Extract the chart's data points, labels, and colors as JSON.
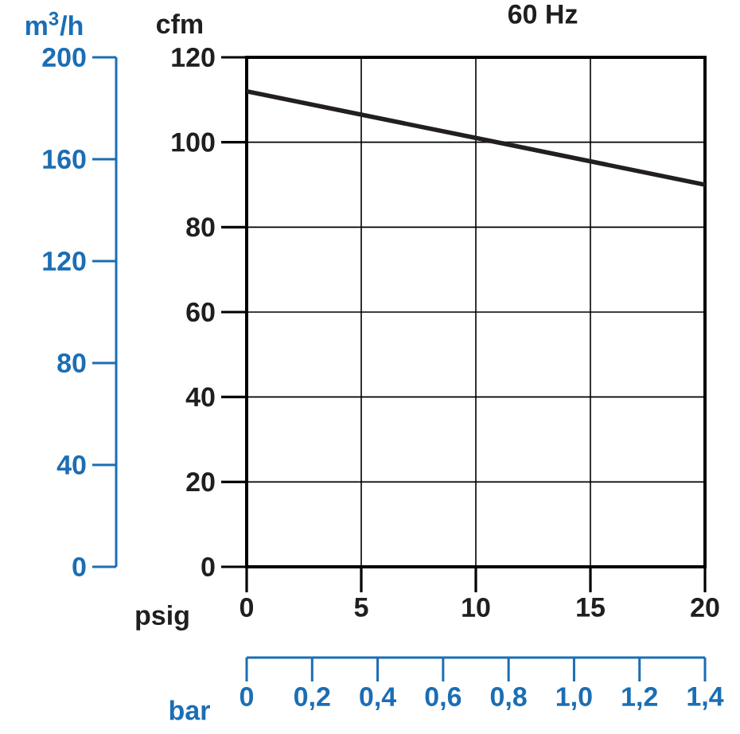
{
  "chart_data": {
    "type": "line",
    "title": "60 Hz",
    "xlabel": "psig",
    "ylabel": "cfm",
    "y2label": "m$^{3}$/h",
    "x2label": "bar",
    "x": [
      0,
      10,
      20
    ],
    "series": [
      {
        "color": "#231f20",
        "values": [
          112,
          101,
          90
        ]
      }
    ],
    "xlim": [
      0,
      20
    ],
    "ylim": [
      0,
      120
    ],
    "xticks": [
      0,
      5,
      10,
      15,
      20
    ],
    "yticks": [
      0,
      20,
      40,
      60,
      80,
      100,
      120
    ],
    "y2lim": [
      0,
      200
    ],
    "y2ticks": [
      0,
      40,
      80,
      120,
      160,
      200
    ],
    "x2lim": [
      0,
      1.4
    ],
    "x2ticks": [
      0,
      {
        "value": 0.2,
        "label": "0,2"
      },
      {
        "value": 0.4,
        "label": "0,4"
      },
      {
        "value": 0.6,
        "label": "0,6"
      },
      {
        "value": 0.8,
        "label": "0,8"
      },
      {
        "value": 1.0,
        "label": "1,0"
      },
      {
        "value": 1.2,
        "label": "1,2"
      },
      {
        "value": 1.4,
        "label": "1,4"
      }
    ],
    "grid": true,
    "line_style": "solid"
  }
}
